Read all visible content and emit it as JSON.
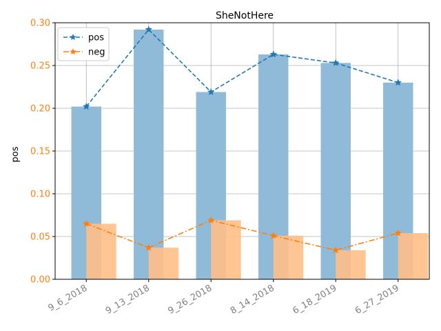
{
  "chart_data": {
    "type": "bar",
    "title": "SheNotHere",
    "xlabel": "",
    "ylabel": "pos",
    "categories": [
      "9_6_2018",
      "9_13_2018",
      "9_26_2018",
      "8_14_2018",
      "6_18_2019",
      "6_27_2019"
    ],
    "ylim": [
      0,
      0.3
    ],
    "yticks": [
      "0.00",
      "0.05",
      "0.10",
      "0.15",
      "0.20",
      "0.25",
      "0.30"
    ],
    "grid": true,
    "legend_position": "top-left",
    "series": [
      {
        "name": "pos",
        "values": [
          0.202,
          0.292,
          0.219,
          0.263,
          0.253,
          0.23
        ],
        "color": "#1f77b4",
        "bar_color": "#8fbbd9",
        "line_style": "dashed",
        "marker": "star"
      },
      {
        "name": "neg",
        "values": [
          0.065,
          0.037,
          0.069,
          0.051,
          0.034,
          0.054
        ],
        "color": "#ff7f0e",
        "bar_color": "#ffbf87",
        "line_style": "dashdot",
        "marker": "star"
      }
    ],
    "colors": {
      "ytick": "#ff7f0e",
      "xtick": "#808080",
      "grid": "#b0b0b0"
    }
  }
}
